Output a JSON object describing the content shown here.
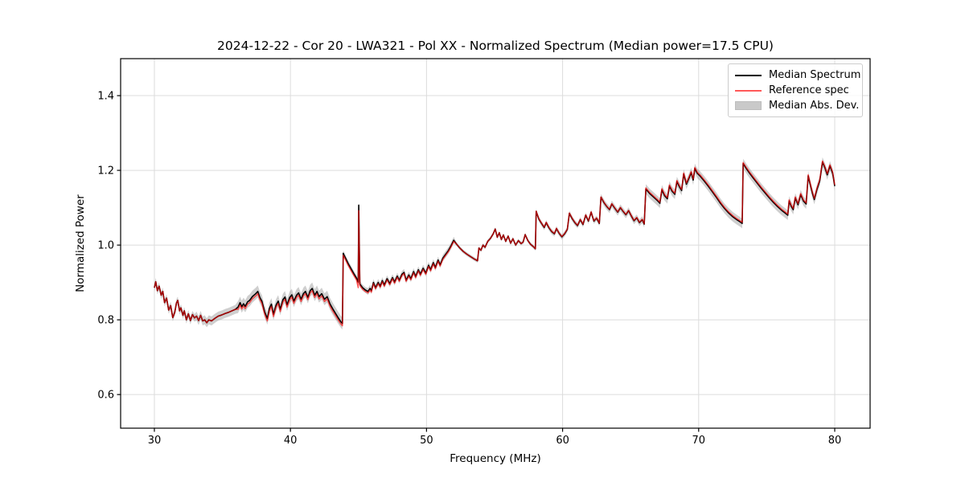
{
  "figure": {
    "title": "2024-12-22 - Cor 20 - LWA321 - Pol XX - Normalized Spectrum (Median power=17.5 CPU)"
  },
  "legend": {
    "items": [
      {
        "label": "Median Spectrum",
        "swatch": "line-black",
        "color": "#000000"
      },
      {
        "label": "Reference spec",
        "swatch": "line-red",
        "color": "#ff0000"
      },
      {
        "label": "Median Abs. Dev.",
        "swatch": "patch-gray",
        "color": "#c9c9c9"
      }
    ]
  },
  "chart_data": {
    "type": "line",
    "title": "2024-12-22 - Cor 20 - LWA321 - Pol XX - Normalized Spectrum (Median power=17.5 CPU)",
    "xlabel": "Frequency (MHz)",
    "ylabel": "Normalized Power",
    "xlim": [
      27.52,
      82.6
    ],
    "ylim": [
      0.51,
      1.499
    ],
    "x_ticks": [
      30,
      40,
      50,
      60,
      70,
      80
    ],
    "y_ticks": [
      0.6,
      0.8,
      1.0,
      1.2,
      1.4
    ],
    "grid": true,
    "legend_position": "upper right",
    "colors": {
      "median": "#000000",
      "reference": "#ff0000",
      "reference_opacity": 0.65,
      "band": "#8c8c8c",
      "band_opacity": 0.42,
      "grid": "#dcdcdc"
    },
    "series": [
      {
        "name": "Median Spectrum",
        "x": [
          30.0,
          30.1,
          30.22,
          30.35,
          30.5,
          30.62,
          30.75,
          30.9,
          31.05,
          31.2,
          31.35,
          31.5,
          31.62,
          31.72,
          31.85,
          31.95,
          32.1,
          32.2,
          32.35,
          32.5,
          32.65,
          32.8,
          32.95,
          33.1,
          33.25,
          33.4,
          33.55,
          33.7,
          33.85,
          34.0,
          34.2,
          34.45,
          34.7,
          34.95,
          35.2,
          35.45,
          35.7,
          35.95,
          36.15,
          36.3,
          36.42,
          36.55,
          36.68,
          36.85,
          37.0,
          37.2,
          37.45,
          37.6,
          37.75,
          37.9,
          38.1,
          38.3,
          38.45,
          38.6,
          38.75,
          38.95,
          39.1,
          39.25,
          39.45,
          39.6,
          39.75,
          39.95,
          40.1,
          40.25,
          40.45,
          40.6,
          40.78,
          40.95,
          41.1,
          41.28,
          41.45,
          41.6,
          41.78,
          41.95,
          42.1,
          42.3,
          42.5,
          42.7,
          42.9,
          43.1,
          43.3,
          43.5,
          43.7,
          43.82,
          43.88,
          44.05,
          44.25,
          44.45,
          44.65,
          44.85,
          44.98,
          45.02,
          45.1,
          45.3,
          45.5,
          45.7,
          45.85,
          45.95,
          46.1,
          46.25,
          46.45,
          46.6,
          46.75,
          46.9,
          47.1,
          47.3,
          47.5,
          47.65,
          47.85,
          48.0,
          48.2,
          48.35,
          48.5,
          48.7,
          48.85,
          49.05,
          49.2,
          49.4,
          49.55,
          49.75,
          49.95,
          50.15,
          50.3,
          50.5,
          50.65,
          50.85,
          51.0,
          51.2,
          51.4,
          51.6,
          51.8,
          52.0,
          52.2,
          52.45,
          52.7,
          52.95,
          53.2,
          53.5,
          53.75,
          53.85,
          54.0,
          54.15,
          54.3,
          54.5,
          54.7,
          54.9,
          55.05,
          55.2,
          55.35,
          55.5,
          55.65,
          55.82,
          56.0,
          56.18,
          56.35,
          56.55,
          56.75,
          56.95,
          57.1,
          57.25,
          57.45,
          57.65,
          57.85,
          58.0,
          58.06,
          58.25,
          58.45,
          58.65,
          58.8,
          59.0,
          59.2,
          59.4,
          59.55,
          59.75,
          59.95,
          60.15,
          60.35,
          60.5,
          60.7,
          60.9,
          61.1,
          61.3,
          61.5,
          61.7,
          61.9,
          62.1,
          62.3,
          62.5,
          62.7,
          62.82,
          63.05,
          63.25,
          63.45,
          63.62,
          63.85,
          64.05,
          64.25,
          64.45,
          64.65,
          64.85,
          65.05,
          65.25,
          65.45,
          65.65,
          65.85,
          66.0,
          66.12,
          66.4,
          66.7,
          67.0,
          67.15,
          67.3,
          67.5,
          67.7,
          67.85,
          68.05,
          68.25,
          68.4,
          68.6,
          68.75,
          68.9,
          69.1,
          69.3,
          69.45,
          69.6,
          69.72,
          69.9,
          70.1,
          70.4,
          70.7,
          71.0,
          71.3,
          71.6,
          71.9,
          72.2,
          72.5,
          72.8,
          73.05,
          73.2,
          73.27,
          73.5,
          73.75,
          74.0,
          74.3,
          74.6,
          74.9,
          75.2,
          75.5,
          75.8,
          76.1,
          76.35,
          76.55,
          76.65,
          76.8,
          76.95,
          77.1,
          77.3,
          77.5,
          77.7,
          77.9,
          78.05,
          78.2,
          78.35,
          78.5,
          78.7,
          78.9,
          79.1,
          79.3,
          79.45,
          79.65,
          79.85,
          80.0
        ],
        "y": [
          0.886,
          0.902,
          0.878,
          0.89,
          0.866,
          0.876,
          0.846,
          0.858,
          0.826,
          0.838,
          0.806,
          0.82,
          0.845,
          0.852,
          0.824,
          0.832,
          0.812,
          0.824,
          0.8,
          0.816,
          0.798,
          0.814,
          0.805,
          0.81,
          0.798,
          0.812,
          0.797,
          0.8,
          0.792,
          0.8,
          0.797,
          0.804,
          0.81,
          0.813,
          0.817,
          0.82,
          0.824,
          0.828,
          0.834,
          0.846,
          0.835,
          0.843,
          0.836,
          0.848,
          0.852,
          0.862,
          0.87,
          0.876,
          0.86,
          0.85,
          0.822,
          0.803,
          0.83,
          0.842,
          0.815,
          0.84,
          0.85,
          0.828,
          0.854,
          0.861,
          0.84,
          0.86,
          0.867,
          0.85,
          0.866,
          0.872,
          0.855,
          0.87,
          0.876,
          0.86,
          0.878,
          0.884,
          0.866,
          0.876,
          0.862,
          0.87,
          0.855,
          0.862,
          0.843,
          0.83,
          0.818,
          0.806,
          0.795,
          0.79,
          0.978,
          0.965,
          0.95,
          0.937,
          0.924,
          0.912,
          0.901,
          1.107,
          0.896,
          0.886,
          0.88,
          0.876,
          0.884,
          0.878,
          0.9,
          0.886,
          0.9,
          0.89,
          0.905,
          0.893,
          0.91,
          0.897,
          0.913,
          0.901,
          0.917,
          0.906,
          0.922,
          0.927,
          0.906,
          0.92,
          0.91,
          0.929,
          0.916,
          0.934,
          0.922,
          0.938,
          0.925,
          0.946,
          0.934,
          0.953,
          0.94,
          0.96,
          0.947,
          0.965,
          0.975,
          0.985,
          0.998,
          1.013,
          1.003,
          0.992,
          0.983,
          0.976,
          0.97,
          0.963,
          0.958,
          0.992,
          0.986,
          1.0,
          0.994,
          1.01,
          1.018,
          1.03,
          1.043,
          1.021,
          1.033,
          1.015,
          1.027,
          1.01,
          1.024,
          1.005,
          1.017,
          1.0,
          1.012,
          1.004,
          1.008,
          1.028,
          1.012,
          1.002,
          0.996,
          0.99,
          1.09,
          1.07,
          1.058,
          1.047,
          1.06,
          1.046,
          1.036,
          1.03,
          1.044,
          1.031,
          1.022,
          1.03,
          1.042,
          1.085,
          1.071,
          1.06,
          1.052,
          1.068,
          1.055,
          1.08,
          1.064,
          1.088,
          1.064,
          1.072,
          1.058,
          1.128,
          1.113,
          1.103,
          1.095,
          1.11,
          1.098,
          1.088,
          1.1,
          1.09,
          1.081,
          1.092,
          1.078,
          1.065,
          1.073,
          1.06,
          1.068,
          1.056,
          1.15,
          1.138,
          1.128,
          1.118,
          1.112,
          1.148,
          1.132,
          1.124,
          1.158,
          1.144,
          1.136,
          1.17,
          1.155,
          1.146,
          1.19,
          1.163,
          1.18,
          1.194,
          1.174,
          1.205,
          1.192,
          1.185,
          1.172,
          1.158,
          1.143,
          1.128,
          1.112,
          1.098,
          1.086,
          1.076,
          1.068,
          1.062,
          1.058,
          1.218,
          1.205,
          1.192,
          1.18,
          1.166,
          1.152,
          1.139,
          1.126,
          1.114,
          1.103,
          1.093,
          1.086,
          1.08,
          1.118,
          1.104,
          1.095,
          1.126,
          1.108,
          1.135,
          1.118,
          1.11,
          1.185,
          1.162,
          1.14,
          1.122,
          1.15,
          1.172,
          1.222,
          1.205,
          1.188,
          1.212,
          1.192,
          1.158
        ]
      },
      {
        "name": "Reference spec",
        "definition": "median plus small offset, piecewise by frequency range [fmin, fmax, delta]",
        "delta_from_median_segments": [
          [
            30.0,
            36.0,
            0.0
          ],
          [
            36.0,
            43.85,
            -0.006
          ],
          [
            43.85,
            44.96,
            -0.005
          ],
          [
            44.96,
            45.06,
            -0.015
          ],
          [
            45.06,
            46.0,
            -0.004
          ],
          [
            46.0,
            52.0,
            -0.003
          ],
          [
            52.0,
            58.0,
            0.0
          ],
          [
            58.0,
            66.1,
            0.001
          ],
          [
            66.1,
            80.1,
            0.003
          ]
        ]
      },
      {
        "name": "Median Abs. Dev.",
        "definition": "shaded band: median +/- halfwidth, piecewise by frequency range [fmin, fmax, halfwidth]",
        "band_halfwidth_segments": [
          [
            30.0,
            33.0,
            0.01
          ],
          [
            33.0,
            36.0,
            0.012
          ],
          [
            36.0,
            43.85,
            0.016
          ],
          [
            43.85,
            45.6,
            0.008
          ],
          [
            45.6,
            52.0,
            0.009
          ],
          [
            52.0,
            58.0,
            0.005
          ],
          [
            58.0,
            62.8,
            0.007
          ],
          [
            62.8,
            66.1,
            0.009
          ],
          [
            66.1,
            80.1,
            0.013
          ]
        ]
      }
    ]
  }
}
